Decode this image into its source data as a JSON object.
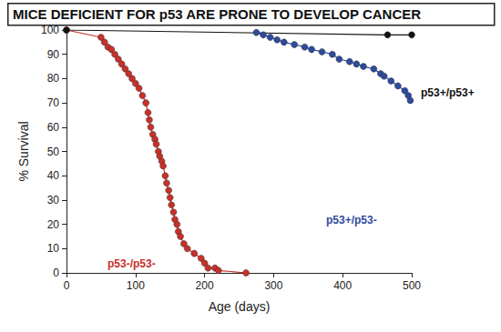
{
  "chart_data": {
    "type": "line",
    "title": "MICE DEFICIENT FOR p53 ARE PRONE TO DEVELOP CANCER",
    "x_label": "Age (days)",
    "y_label": "% Survival",
    "xlim": [
      0,
      500
    ],
    "xticks": [
      0,
      100,
      200,
      300,
      400,
      500
    ],
    "ylim": [
      0,
      100
    ],
    "yticks": [
      0,
      10,
      20,
      30,
      40,
      50,
      60,
      70,
      80,
      90,
      100
    ],
    "grid": false,
    "series": [
      {
        "name": "p53-/p53-",
        "color": "#c8302a",
        "marker": "circle",
        "x": [
          0,
          50,
          55,
          60,
          65,
          70,
          75,
          80,
          85,
          90,
          95,
          100,
          105,
          110,
          115,
          118,
          120,
          122,
          125,
          128,
          130,
          133,
          135,
          138,
          140,
          143,
          145,
          148,
          150,
          152,
          155,
          157,
          160,
          162,
          165,
          170,
          175,
          185,
          195,
          200,
          205,
          215,
          220,
          260
        ],
        "values": [
          100,
          97,
          95,
          93,
          92,
          90,
          88,
          86,
          84,
          82,
          80,
          78,
          76,
          73,
          70,
          66,
          63,
          60,
          57,
          55,
          53,
          50,
          48,
          46,
          44,
          40,
          37,
          34,
          31,
          28,
          25,
          22,
          20,
          17,
          15,
          12,
          10,
          8,
          6,
          4,
          2,
          2,
          1,
          0
        ]
      },
      {
        "name": "p53+/p53-",
        "color": "#2e4a9e",
        "marker": "circle",
        "x": [
          275,
          285,
          295,
          305,
          315,
          330,
          345,
          355,
          370,
          385,
          395,
          410,
          420,
          430,
          445,
          455,
          460,
          470,
          480,
          490,
          495,
          498
        ],
        "values": [
          99,
          98,
          97,
          96,
          95,
          94,
          93,
          92,
          91,
          90,
          88,
          87,
          86,
          85,
          84,
          82,
          81,
          79,
          77,
          75,
          73,
          71
        ]
      },
      {
        "name": "p53+/p53+",
        "color": "#111111",
        "marker": "circle",
        "x": [
          0,
          465,
          500
        ],
        "values": [
          100,
          98,
          98
        ]
      }
    ]
  }
}
